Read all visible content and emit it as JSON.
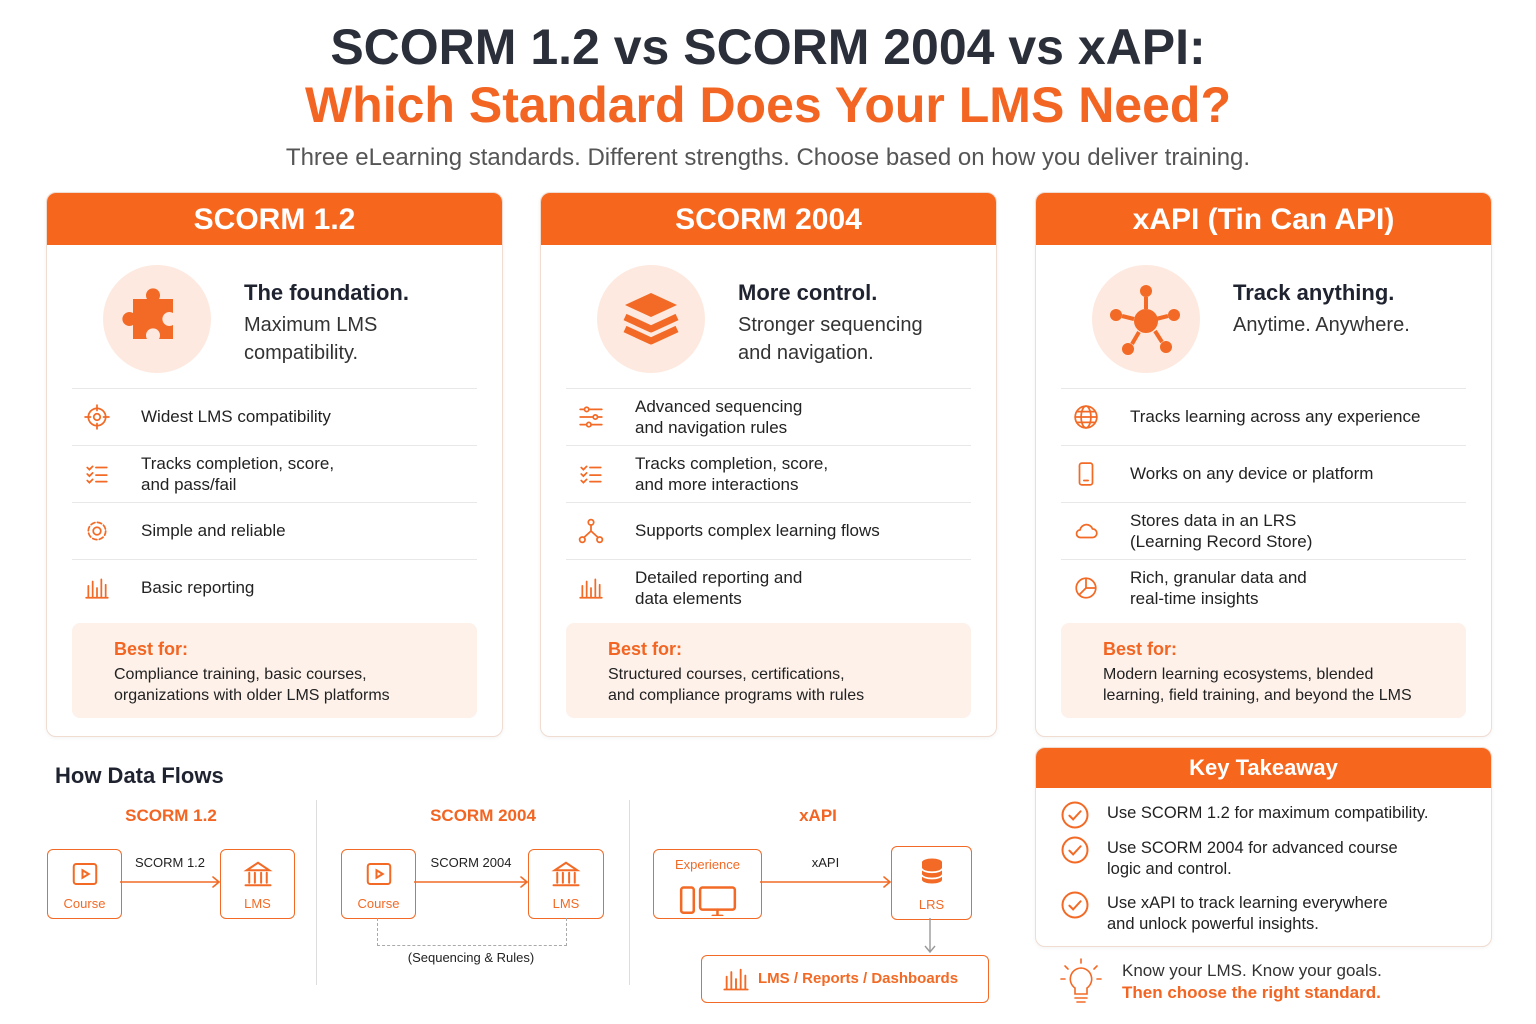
{
  "header": {
    "title_line1": "SCORM 1.2 vs SCORM 2004 vs xAPI:",
    "title_line2": "Which Standard Does Your LMS Need?",
    "subtitle": "Three eLearning standards. Different strengths. Choose based on how you deliver training."
  },
  "cards": [
    {
      "title": "SCORM 1.2",
      "tagline": "The foundation.",
      "description": "Maximum LMS\ncompatibility.",
      "features": [
        "Widest LMS compatibility",
        "Tracks completion, score,\nand pass/fail",
        "Simple and reliable",
        "Basic reporting"
      ],
      "best_for_label": "Best for:",
      "best_for": "Compliance training, basic courses,\norganizations with older LMS platforms"
    },
    {
      "title": "SCORM 2004",
      "tagline": "More control.",
      "description": "Stronger sequencing\nand navigation.",
      "features": [
        "Advanced sequencing\nand navigation rules",
        "Tracks completion, score,\nand more interactions",
        "Supports complex learning flows",
        "Detailed reporting and\ndata elements"
      ],
      "best_for_label": "Best for:",
      "best_for": "Structured courses, certifications,\nand compliance programs with rules"
    },
    {
      "title": "xAPI (Tin Can API)",
      "tagline": "Track anything.",
      "description": "Anytime. Anywhere.",
      "features": [
        "Tracks learning across any experience",
        "Works on any device or platform",
        "Stores data in an LRS\n(Learning Record Store)",
        "Rich, granular data and\nreal-time insights"
      ],
      "best_for_label": "Best for:",
      "best_for": "Modern learning ecosystems, blended\nlearning, field training, and beyond the LMS"
    }
  ],
  "data_flows": {
    "title": "How Data Flows",
    "diagrams": [
      {
        "title": "SCORM 1.2",
        "source": "Course",
        "arrow_label": "SCORM 1.2",
        "target": "LMS"
      },
      {
        "title": "SCORM 2004",
        "source": "Course",
        "arrow_label": "SCORM 2004",
        "target": "LMS",
        "note": "(Sequencing & Rules)"
      },
      {
        "title": "xAPI",
        "source": "Experience",
        "arrow_label": "xAPI",
        "target": "LRS",
        "output": "LMS / Reports / Dashboards"
      }
    ]
  },
  "key_takeaway": {
    "title": "Key Takeaway",
    "items": [
      "Use SCORM 1.2 for maximum compatibility.",
      "Use SCORM 2004 for advanced course\nlogic and control.",
      "Use xAPI to track learning everywhere\nand unlock powerful insights."
    ]
  },
  "footer": {
    "line1": "Know your LMS. Know your goals.",
    "line2": "Then choose the right standard."
  }
}
